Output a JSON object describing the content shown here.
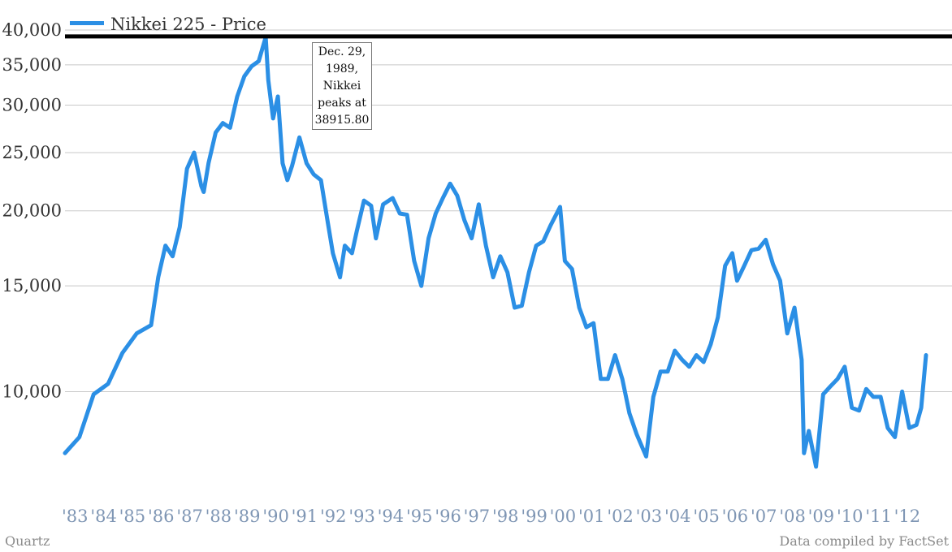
{
  "chart_data": {
    "type": "line",
    "title": "",
    "xlabel": "",
    "ylabel": "",
    "y_scale": "log",
    "ylim": [
      7200,
      40000
    ],
    "yticks": [
      10000,
      15000,
      20000,
      25000,
      30000,
      35000,
      40000
    ],
    "ytick_labels": [
      "10,000",
      "15,000",
      "20,000",
      "25,000",
      "30,000",
      "35,000",
      "40,000"
    ],
    "xtick_labels": [
      "'83",
      "'84",
      "'85",
      "'86",
      "'87",
      "'88",
      "'89",
      "'90",
      "'91",
      "'92",
      "'93",
      "'94",
      "'95",
      "'96",
      "'97",
      "'98",
      "'99",
      "'00",
      "'01",
      "'02",
      "'03",
      "'04",
      "'05",
      "'06",
      "'07",
      "'08",
      "'09",
      "'10",
      "'11",
      "'12"
    ],
    "grid": true,
    "legend": "top-left",
    "series": [
      {
        "name": "Nikkei 225 - Price",
        "color": "#2b8fe5",
        "x": [
          "1983-01",
          "1983-07",
          "1984-01",
          "1984-07",
          "1985-01",
          "1985-07",
          "1986-01",
          "1986-04",
          "1986-07",
          "1986-10",
          "1987-01",
          "1987-04",
          "1987-07",
          "1987-10",
          "1987-11",
          "1988-01",
          "1988-04",
          "1988-07",
          "1988-10",
          "1989-01",
          "1989-04",
          "1989-07",
          "1989-10",
          "1989-12-29",
          "1990-02",
          "1990-04",
          "1990-06",
          "1990-08",
          "1990-10",
          "1990-12",
          "1991-03",
          "1991-06",
          "1991-09",
          "1991-12",
          "1992-03",
          "1992-05",
          "1992-08",
          "1992-10",
          "1993-01",
          "1993-03",
          "1993-06",
          "1993-09",
          "1993-11",
          "1994-02",
          "1994-06",
          "1994-09",
          "1994-12",
          "1995-03",
          "1995-06",
          "1995-09",
          "1995-12",
          "1996-03",
          "1996-06",
          "1996-09",
          "1996-12",
          "1997-03",
          "1997-06",
          "1997-09",
          "1997-12",
          "1998-03",
          "1998-06",
          "1998-09",
          "1998-12",
          "1999-03",
          "1999-06",
          "1999-09",
          "1999-12",
          "2000-04",
          "2000-06",
          "2000-09",
          "2000-12",
          "2001-03",
          "2001-06",
          "2001-09",
          "2001-12",
          "2002-03",
          "2002-06",
          "2002-09",
          "2002-12",
          "2003-04",
          "2003-07",
          "2003-10",
          "2004-01",
          "2004-04",
          "2004-07",
          "2004-10",
          "2005-01",
          "2005-04",
          "2005-07",
          "2005-10",
          "2006-01",
          "2006-04",
          "2006-06",
          "2006-09",
          "2006-12",
          "2007-03",
          "2007-06",
          "2007-09",
          "2007-12",
          "2008-03",
          "2008-06",
          "2008-09",
          "2008-10",
          "2008-12",
          "2009-03",
          "2009-06",
          "2009-09",
          "2009-12",
          "2010-03",
          "2010-06",
          "2010-09",
          "2010-12",
          "2011-03",
          "2011-06",
          "2011-09",
          "2011-12",
          "2012-03",
          "2012-06",
          "2012-09",
          "2012-11",
          "2013-01"
        ],
        "values": [
          7900,
          8400,
          9900,
          10300,
          11600,
          12500,
          12900,
          15500,
          17500,
          16800,
          18800,
          23500,
          25000,
          22000,
          21500,
          24000,
          27000,
          28000,
          27500,
          31000,
          33500,
          34800,
          35500,
          38916,
          33000,
          28500,
          31000,
          24000,
          22500,
          23800,
          26500,
          24000,
          23000,
          22500,
          19000,
          17000,
          15500,
          17500,
          17000,
          18500,
          20800,
          20400,
          18000,
          20500,
          21000,
          19800,
          19700,
          16500,
          15000,
          18000,
          19800,
          21000,
          22200,
          21200,
          19300,
          18000,
          20500,
          17500,
          15500,
          16800,
          15800,
          13800,
          13900,
          15800,
          17500,
          17800,
          18900,
          20300,
          16500,
          16000,
          13800,
          12800,
          13000,
          10500,
          10500,
          11500,
          10500,
          9200,
          8500,
          7800,
          9800,
          10800,
          10800,
          11700,
          11300,
          11000,
          11500,
          11200,
          12000,
          13300,
          16200,
          17000,
          15300,
          16200,
          17200,
          17300,
          17900,
          16300,
          15300,
          12500,
          13800,
          11300,
          7900,
          8600,
          7500,
          9900,
          10200,
          10500,
          11000,
          9400,
          9300,
          10100,
          9800,
          9800,
          8700,
          8400,
          10000,
          8700,
          8800,
          9400,
          11500
        ]
      }
    ],
    "annotations": [
      {
        "label": "Dec. 29, 1989, Nikkei peaks at 38915.80",
        "lines": [
          "Dec. 29,",
          "1989,",
          "Nikkei",
          "peaks at",
          "38915.80"
        ],
        "x": "1989-12-29",
        "y": 38916
      }
    ],
    "reference_line": {
      "y": 38916,
      "color": "#000000"
    }
  },
  "footer": {
    "left": "Quartz",
    "right": "Data compiled by FactSet"
  }
}
